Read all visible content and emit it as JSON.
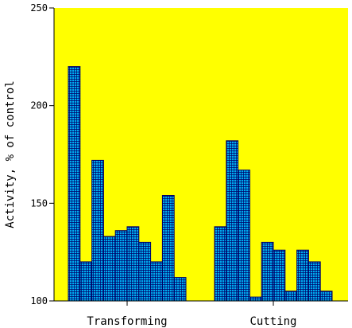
{
  "chart_data": {
    "type": "bar",
    "title": "",
    "xlabel": "",
    "ylabel": "Activity, % of control",
    "ylim": [
      100,
      250
    ],
    "yticks": [
      100,
      150,
      200,
      250
    ],
    "grid": false,
    "colors": {
      "plot_background": "#ffff00",
      "bar_fill": "#00aaee",
      "bar_edge": "#000066"
    },
    "groups": [
      {
        "label": "Transforming",
        "values": [
          220,
          120,
          172,
          133,
          136,
          138,
          130,
          120,
          154,
          112
        ]
      },
      {
        "label": "Cutting",
        "values": [
          138,
          182,
          167,
          102,
          130,
          126,
          105,
          126,
          120,
          105
        ]
      }
    ]
  }
}
